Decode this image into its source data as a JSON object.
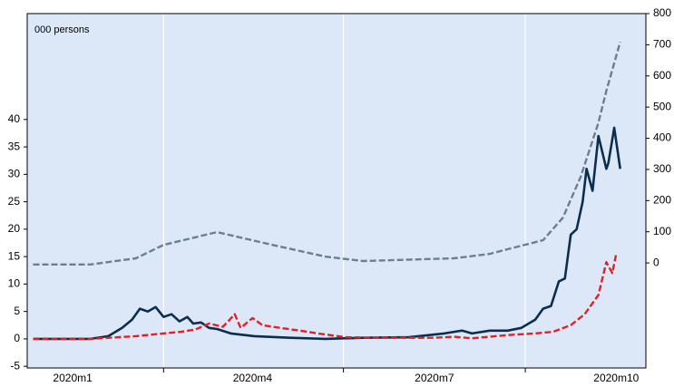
{
  "chart_data": {
    "type": "line",
    "subtitle": "000 persons",
    "xlim": [
      22,
      335
    ],
    "xticks": [
      91,
      182,
      274
    ],
    "xlabels": [
      {
        "value": 45,
        "label": "2020m1"
      },
      {
        "value": 136,
        "label": "2020m4"
      },
      {
        "value": 228,
        "label": "2020m7"
      },
      {
        "value": 320,
        "label": "2020m10"
      }
    ],
    "ylim": [
      -5.3,
      59.3
    ],
    "yticks": [
      -5,
      0,
      5,
      10,
      15,
      20,
      25,
      30,
      35,
      40
    ],
    "y2lim": [
      -337,
      800
    ],
    "y2ticks": [
      0,
      100,
      200,
      300,
      400,
      500,
      600,
      700,
      800
    ],
    "grid": "x",
    "background": "#dce8f8",
    "series": [
      {
        "color": "#6b7f8f",
        "dash": true,
        "axis": "y2",
        "x": [
          25,
          54,
          77,
          91,
          118,
          146,
          173,
          192,
          238,
          256,
          265,
          283,
          293,
          302,
          311,
          315,
          322
        ],
        "values": [
          -5,
          -5,
          15,
          58,
          99,
          58,
          20,
          6,
          15,
          29,
          44,
          73,
          145,
          276,
          450,
          552,
          709
        ]
      },
      {
        "color": "#0b2e4f",
        "dash": false,
        "axis": "y",
        "x": [
          25,
          54,
          63,
          70,
          75,
          79,
          83,
          87,
          91,
          95,
          99,
          103,
          106,
          110,
          114,
          118,
          125,
          137,
          155,
          173,
          192,
          215,
          233,
          242,
          247,
          256,
          265,
          272,
          279,
          283,
          287,
          291,
          294,
          297,
          300,
          303,
          305,
          308,
          311,
          315,
          316,
          319,
          322
        ],
        "values": [
          0,
          0,
          0.5,
          2,
          3.5,
          5.5,
          5,
          5.8,
          4,
          4.5,
          3.2,
          4,
          2.8,
          3,
          2,
          1.8,
          1,
          0.5,
          0.2,
          0,
          0.2,
          0.3,
          1,
          1.5,
          1,
          1.5,
          1.5,
          2,
          3.5,
          5.5,
          6,
          10.5,
          11,
          19,
          20,
          25,
          31,
          27,
          37,
          31,
          32,
          38.5,
          31
        ]
      },
      {
        "color": "#e0202a",
        "dash": true,
        "axis": "y",
        "x": [
          25,
          54,
          77,
          91,
          100,
          107,
          114,
          121,
          127,
          130,
          136,
          141,
          150,
          160,
          169,
          183,
          201,
          228,
          238,
          247,
          265,
          279,
          288,
          297,
          304,
          311,
          315,
          318,
          320
        ],
        "values": [
          0,
          0,
          0.5,
          1,
          1.3,
          1.7,
          2.8,
          2.2,
          4.5,
          2,
          3.8,
          2.5,
          2,
          1.5,
          1,
          0.3,
          0.2,
          0.2,
          0.4,
          0.1,
          0.7,
          1,
          1.3,
          2.5,
          4.5,
          8,
          14,
          12,
          15.5
        ]
      }
    ]
  }
}
